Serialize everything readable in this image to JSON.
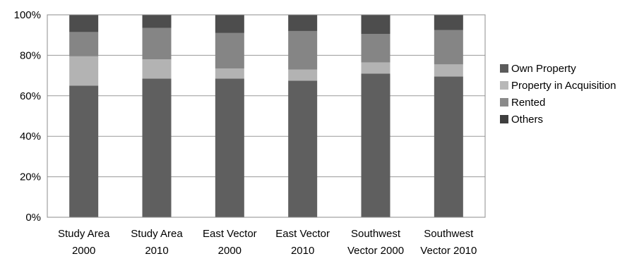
{
  "chart_data": {
    "type": "bar",
    "stacked": true,
    "categories": [
      [
        "Study Area",
        "2000"
      ],
      [
        "Study Area",
        "2010"
      ],
      [
        "East Vector",
        "2000"
      ],
      [
        "East Vector",
        "2010"
      ],
      [
        "Southwest",
        "Vector 2000"
      ],
      [
        "Southwest",
        "Vector 2010"
      ]
    ],
    "series": [
      {
        "name": "Own Property",
        "color": "#5f5f5f",
        "values": [
          65,
          68.5,
          68.5,
          67.5,
          71,
          69.5
        ]
      },
      {
        "name": "Property in Acquisition",
        "color": "#b3b3b3",
        "values": [
          14.5,
          9.5,
          5,
          5.5,
          5.5,
          6
        ]
      },
      {
        "name": "Rented",
        "color": "#858585",
        "values": [
          12,
          15.5,
          17.5,
          19,
          14,
          17
        ]
      },
      {
        "name": "Others",
        "color": "#4d4d4d",
        "values": [
          8.5,
          6.5,
          9,
          8,
          9.5,
          7.5
        ]
      }
    ],
    "legend_order": [
      "Own Property",
      "Property in Acquisition",
      "Rented",
      "Others"
    ],
    "legend_colors": [
      "#5b5b5b",
      "#b8b8b8",
      "#8a8a8a",
      "#3f3f3f"
    ],
    "y_ticks": [
      "0%",
      "20%",
      "40%",
      "60%",
      "80%",
      "100%"
    ],
    "ylim": [
      0,
      100
    ],
    "grid": true,
    "legend_position": "right"
  }
}
